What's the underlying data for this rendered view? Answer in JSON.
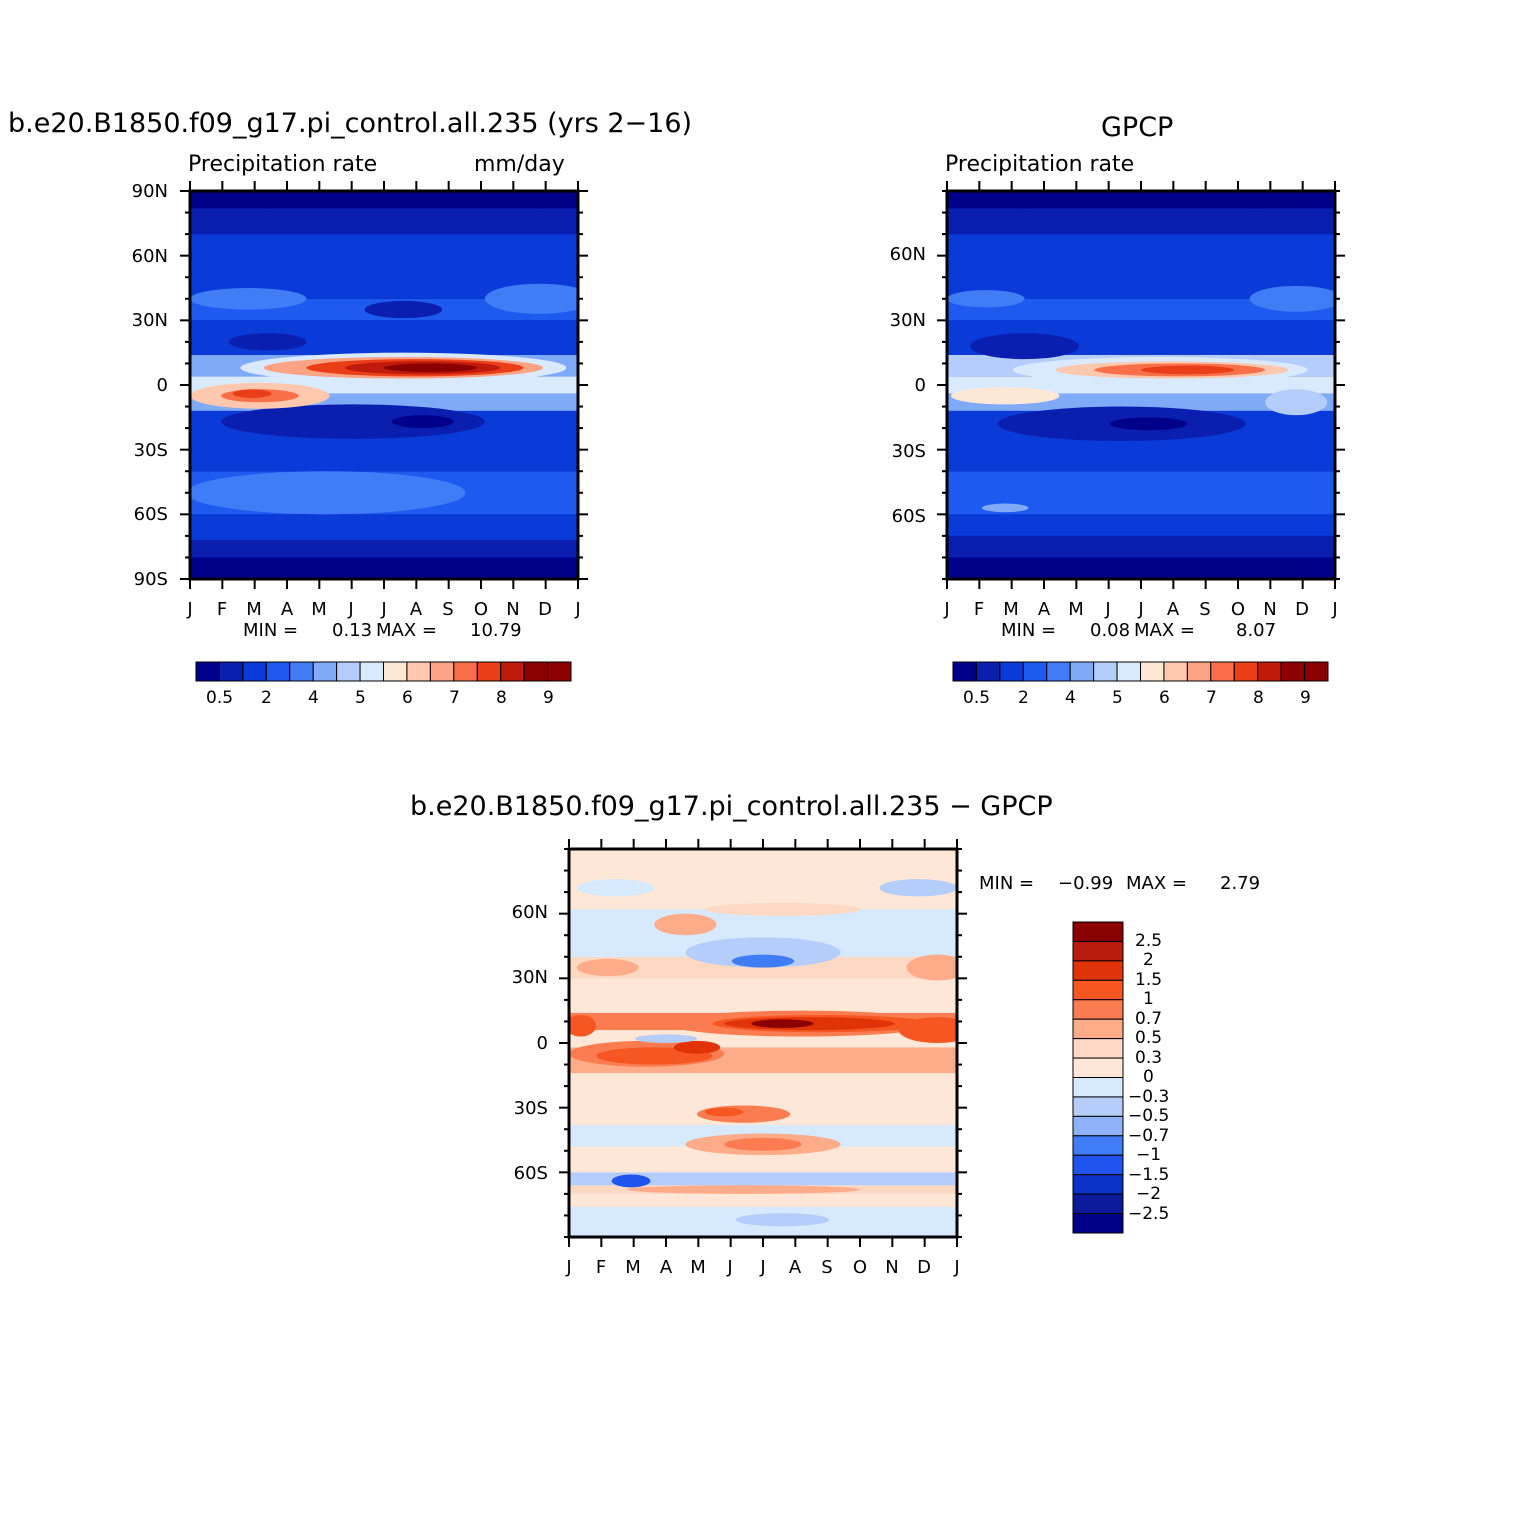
{
  "panel1": {
    "title": "b.e20.B1850.f09_g17.pi_control.all.235 (yrs 2-16)",
    "left_label": "Precipitation rate",
    "right_label": "mm/day",
    "min_label": "MIN =",
    "min_value": "0.13",
    "max_label": "MAX =",
    "max_value": "10.79",
    "yticks": [
      "90N",
      "60N",
      "30N",
      "0",
      "30S",
      "60S",
      "90S"
    ],
    "xticks": [
      "J",
      "F",
      "M",
      "A",
      "M",
      "J",
      "J",
      "A",
      "S",
      "O",
      "N",
      "D",
      "J"
    ],
    "colorbar_labels": [
      "0.5",
      "2",
      "4",
      "5",
      "6",
      "7",
      "8",
      "9"
    ]
  },
  "panel2": {
    "title": "GPCP",
    "left_label": "Precipitation rate",
    "min_label": "MIN =",
    "min_value": "0.08",
    "max_label": "MAX =",
    "max_value": "8.07",
    "yticks": [
      "60N",
      "30N",
      "0",
      "30S",
      "60S"
    ],
    "xticks": [
      "J",
      "F",
      "M",
      "A",
      "M",
      "J",
      "J",
      "A",
      "S",
      "O",
      "N",
      "D",
      "J"
    ],
    "colorbar_labels": [
      "0.5",
      "2",
      "4",
      "5",
      "6",
      "7",
      "8",
      "9"
    ]
  },
  "panel3": {
    "title": "b.e20.B1850.f09_g17.pi_control.all.235 - GPCP",
    "min_label": "MIN =",
    "min_value": "-0.99",
    "max_label": "MAX =",
    "max_value": "2.79",
    "yticks": [
      "60N",
      "30N",
      "0",
      "30S",
      "60S"
    ],
    "xticks": [
      "J",
      "F",
      "M",
      "A",
      "M",
      "J",
      "J",
      "A",
      "S",
      "O",
      "N",
      "D",
      "J"
    ],
    "colorbar_labels": [
      "2.5",
      "2",
      "1.5",
      "1",
      "0.7",
      "0.5",
      "0.3",
      "0",
      "-0.3",
      "-0.5",
      "-0.7",
      "-1",
      "-1.5",
      "-2",
      "-2.5"
    ]
  },
  "colors": {
    "abs_scale": [
      "#00008b",
      "#0a1fb0",
      "#0a3bd8",
      "#1f5af0",
      "#3f7cf5",
      "#7faaf8",
      "#b4cdfb",
      "#d9eafe",
      "#fde8d6",
      "#fdc8ad",
      "#fca385",
      "#f96f4a",
      "#ea3e18",
      "#c01a0c",
      "#8b0000"
    ],
    "diff_scale": [
      "#8b0000",
      "#b81c0c",
      "#e03408",
      "#f65722",
      "#fb7c50",
      "#fdab88",
      "#fdd9c4",
      "#fee7d6",
      "#d7e9fc",
      "#b4cdfb",
      "#8eb2f8",
      "#3f7cf5",
      "#1f55ee",
      "#0a32c8",
      "#0a1a9a",
      "#00008b"
    ]
  },
  "chart_data": [
    {
      "type": "heatmap",
      "title": "b.e20.B1850.f09_g17.pi_control.all.235 (yrs 2-16)",
      "x": [
        "J",
        "F",
        "M",
        "A",
        "M",
        "J",
        "J",
        "A",
        "S",
        "O",
        "N",
        "D",
        "J"
      ],
      "y": [
        "90S",
        "60S",
        "30S",
        "0",
        "30N",
        "60N",
        "90N"
      ],
      "ylim": [
        -90,
        90
      ],
      "units": "mm/day",
      "min": 0.13,
      "max": 10.79,
      "levels": [
        0.5,
        1,
        2,
        3,
        4,
        4.5,
        5,
        5.5,
        6,
        6.5,
        7,
        7.5,
        8,
        8.5,
        9,
        9.5
      ],
      "itcz_peak": {
        "month": "Jul-Aug",
        "lat": 8,
        "value": 10.5
      },
      "legend": "bottom"
    },
    {
      "type": "heatmap",
      "title": "GPCP",
      "x": [
        "J",
        "F",
        "M",
        "A",
        "M",
        "J",
        "J",
        "A",
        "S",
        "O",
        "N",
        "D",
        "J"
      ],
      "y": [
        "60S",
        "30S",
        "0",
        "30N",
        "60N"
      ],
      "ylim": [
        -90,
        90
      ],
      "units": "mm/day",
      "min": 0.08,
      "max": 8.07,
      "levels": [
        0.5,
        1,
        2,
        3,
        4,
        4.5,
        5,
        5.5,
        6,
        6.5,
        7,
        7.5,
        8,
        8.5,
        9,
        9.5
      ],
      "itcz_peak": {
        "month": "Jul-Aug",
        "lat": 8,
        "value": 8.0
      },
      "legend": "bottom"
    },
    {
      "type": "heatmap",
      "title": "b.e20.B1850.f09_g17.pi_control.all.235 - GPCP",
      "x": [
        "J",
        "F",
        "M",
        "A",
        "M",
        "J",
        "J",
        "A",
        "S",
        "O",
        "N",
        "D",
        "J"
      ],
      "y": [
        "60S",
        "30S",
        "0",
        "30N",
        "60N"
      ],
      "ylim": [
        -90,
        90
      ],
      "min": -0.99,
      "max": 2.79,
      "levels": [
        -2.5,
        -2,
        -1.5,
        -1,
        -0.7,
        -0.5,
        -0.3,
        0,
        0.3,
        0.5,
        0.7,
        1,
        1.5,
        2,
        2.5
      ],
      "legend": "right"
    }
  ]
}
